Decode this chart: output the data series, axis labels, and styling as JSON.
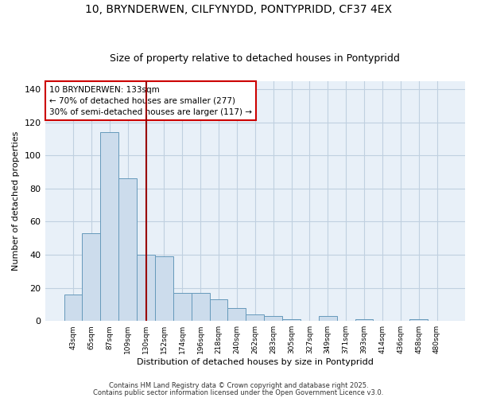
{
  "title1": "10, BRYNDERWEN, CILFYNYDD, PONTYPRIDD, CF37 4EX",
  "title2": "Size of property relative to detached houses in Pontypridd",
  "xlabel": "Distribution of detached houses by size in Pontypridd",
  "ylabel": "Number of detached properties",
  "bar_labels": [
    "43sqm",
    "65sqm",
    "87sqm",
    "109sqm",
    "130sqm",
    "152sqm",
    "174sqm",
    "196sqm",
    "218sqm",
    "240sqm",
    "262sqm",
    "283sqm",
    "305sqm",
    "327sqm",
    "349sqm",
    "371sqm",
    "393sqm",
    "414sqm",
    "436sqm",
    "458sqm",
    "480sqm"
  ],
  "bar_values": [
    16,
    53,
    114,
    86,
    40,
    39,
    17,
    17,
    13,
    8,
    4,
    3,
    1,
    0,
    3,
    0,
    1,
    0,
    0,
    1,
    0
  ],
  "bar_color": "#ccdcec",
  "bar_edge_color": "#6699bb",
  "vline_x": 4.0,
  "vline_color": "#990000",
  "annotation_text": "10 BRYNDERWEN: 133sqm\n← 70% of detached houses are smaller (277)\n30% of semi-detached houses are larger (117) →",
  "annotation_box_color": "#ffffff",
  "annotation_box_edge": "#cc0000",
  "ylim": [
    0,
    145
  ],
  "yticks": [
    0,
    20,
    40,
    60,
    80,
    100,
    120,
    140
  ],
  "grid_color": "#c0d0e0",
  "bg_color": "#e8f0f8",
  "fig_bg_color": "#ffffff",
  "footer_text1": "Contains HM Land Registry data © Crown copyright and database right 2025.",
  "footer_text2": "Contains public sector information licensed under the Open Government Licence v3.0.",
  "title1_fontsize": 10,
  "title2_fontsize": 9
}
